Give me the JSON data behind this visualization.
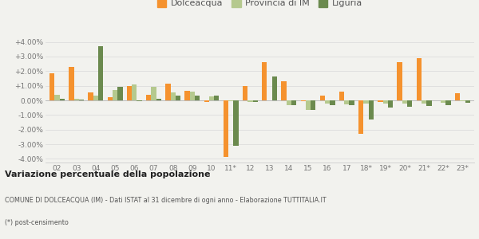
{
  "categories": [
    "02",
    "03",
    "04",
    "05",
    "06",
    "07",
    "08",
    "09",
    "10",
    "11*",
    "12",
    "13",
    "14",
    "15",
    "16",
    "17",
    "18*",
    "19*",
    "20*",
    "21*",
    "22*",
    "23*"
  ],
  "dolceacqua": [
    1.85,
    2.3,
    0.55,
    0.2,
    1.0,
    0.4,
    1.15,
    0.65,
    -0.1,
    -3.85,
    1.0,
    2.6,
    1.3,
    -0.05,
    0.3,
    0.6,
    -2.3,
    -0.1,
    2.6,
    2.9,
    0.0,
    0.5
  ],
  "provincia_im": [
    0.4,
    0.1,
    0.3,
    0.7,
    1.1,
    0.95,
    0.55,
    0.6,
    0.25,
    -0.05,
    -0.1,
    0.0,
    -0.3,
    -0.65,
    -0.2,
    -0.25,
    -0.2,
    -0.2,
    -0.2,
    -0.2,
    -0.15,
    -0.05
  ],
  "liguria": [
    0.1,
    0.05,
    3.7,
    0.95,
    -0.05,
    0.1,
    0.35,
    0.35,
    0.3,
    -3.1,
    -0.1,
    1.65,
    -0.35,
    -0.65,
    -0.3,
    -0.3,
    -1.3,
    -0.5,
    -0.45,
    -0.4,
    -0.35,
    -0.15
  ],
  "color_dolceacqua": "#f5922e",
  "color_provincia": "#b5c98e",
  "color_liguria": "#6b8a4e",
  "ylim": [
    -4.25,
    4.25
  ],
  "yticks": [
    -4.0,
    -3.0,
    -2.0,
    -1.0,
    0.0,
    1.0,
    2.0,
    3.0,
    4.0
  ],
  "ytick_labels": [
    "-4.00%",
    "-3.00%",
    "-2.00%",
    "-1.00%",
    "0.00%",
    "+1.00%",
    "+2.00%",
    "+3.00%",
    "+4.00%"
  ],
  "title_bold": "Variazione percentuale della popolazione",
  "subtitle1": "COMUNE DI DOLCEACQUA (IM) - Dati ISTAT al 31 dicembre di ogni anno - Elaborazione TUTTITALIA.IT",
  "subtitle2": "(*) post-censimento",
  "bg_color": "#f2f2ee",
  "legend_labels": [
    "Dolceacqua",
    "Provincia di IM",
    "Liguria"
  ]
}
